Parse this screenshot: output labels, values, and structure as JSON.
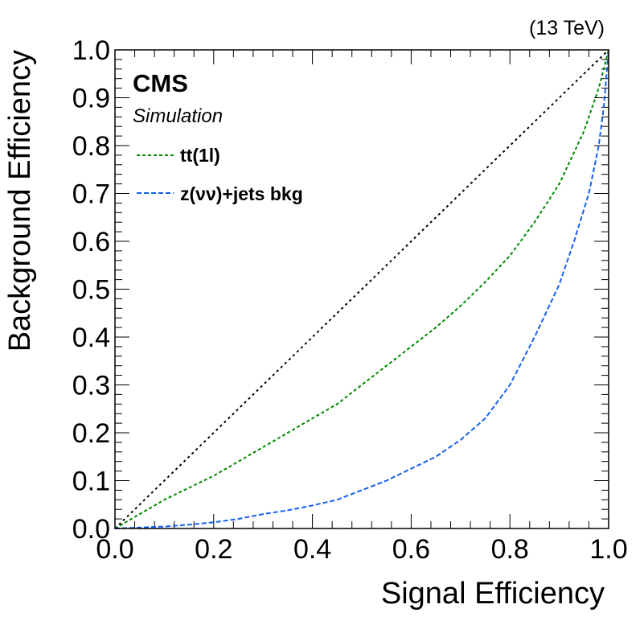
{
  "chart_data": {
    "type": "line",
    "xlabel": "Signal Efficiency",
    "ylabel": "Background Efficiency",
    "energy_label": "(13 TeV)",
    "experiment": "CMS",
    "experiment_sub": "Simulation",
    "xlim": [
      0.0,
      1.0
    ],
    "ylim": [
      0.0,
      1.0
    ],
    "x_ticks": [
      "0.0",
      "0.2",
      "0.4",
      "0.6",
      "0.8",
      "1.0"
    ],
    "y_ticks": [
      "0.0",
      "0.1",
      "0.2",
      "0.3",
      "0.4",
      "0.5",
      "0.6",
      "0.7",
      "0.8",
      "0.9",
      "1.0"
    ],
    "legend_position": "top-left",
    "grid": false,
    "diagonal": {
      "color": "#000000",
      "x": [
        0.0,
        1.0
      ],
      "y": [
        0.0,
        1.0
      ]
    },
    "series": [
      {
        "name": "tt(1l)",
        "color": "#008800",
        "x": [
          0.0,
          0.05,
          0.1,
          0.15,
          0.2,
          0.25,
          0.3,
          0.35,
          0.4,
          0.45,
          0.5,
          0.55,
          0.6,
          0.65,
          0.7,
          0.75,
          0.8,
          0.85,
          0.9,
          0.95,
          0.98,
          1.0
        ],
        "y": [
          0.0,
          0.03,
          0.06,
          0.085,
          0.11,
          0.14,
          0.17,
          0.2,
          0.23,
          0.26,
          0.3,
          0.34,
          0.38,
          0.42,
          0.465,
          0.515,
          0.57,
          0.64,
          0.72,
          0.83,
          0.92,
          1.0
        ]
      },
      {
        "name": "z(νν)+jets bkg",
        "color": "#1560f0",
        "x": [
          0.0,
          0.05,
          0.1,
          0.15,
          0.2,
          0.25,
          0.3,
          0.35,
          0.4,
          0.45,
          0.5,
          0.55,
          0.6,
          0.65,
          0.7,
          0.75,
          0.8,
          0.85,
          0.9,
          0.93,
          0.96,
          0.98,
          0.99,
          1.0
        ],
        "y": [
          0.0,
          0.002,
          0.004,
          0.008,
          0.013,
          0.02,
          0.03,
          0.038,
          0.048,
          0.06,
          0.08,
          0.1,
          0.125,
          0.15,
          0.185,
          0.23,
          0.3,
          0.4,
          0.51,
          0.6,
          0.7,
          0.8,
          0.88,
          1.0
        ]
      }
    ]
  }
}
